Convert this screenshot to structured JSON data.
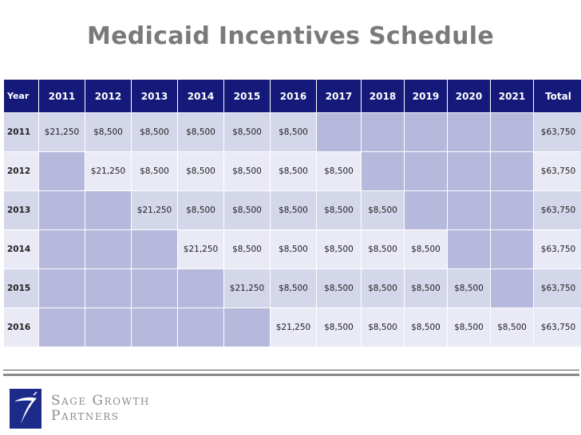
{
  "title": "Medicaid Incentives Schedule",
  "table": {
    "headers": [
      "Year",
      "2011",
      "2012",
      "2013",
      "2014",
      "2015",
      "2016",
      "2017",
      "2018",
      "2019",
      "2020",
      "2021",
      "Total"
    ],
    "rows": [
      {
        "year": "2011",
        "cells": [
          "$21,250",
          "$8,500",
          "$8,500",
          "$8,500",
          "$8,500",
          "$8,500",
          "",
          "",
          "",
          "",
          ""
        ],
        "total": "$63,750"
      },
      {
        "year": "2012",
        "cells": [
          "",
          "$21,250",
          "$8,500",
          "$8,500",
          "$8,500",
          "$8,500",
          "$8,500",
          "",
          "",
          "",
          ""
        ],
        "total": "$63,750"
      },
      {
        "year": "2013",
        "cells": [
          "",
          "",
          "$21,250",
          "$8,500",
          "$8,500",
          "$8,500",
          "$8,500",
          "$8,500",
          "",
          "",
          ""
        ],
        "total": "$63,750"
      },
      {
        "year": "2014",
        "cells": [
          "",
          "",
          "",
          "$21,250",
          "$8,500",
          "$8,500",
          "$8,500",
          "$8,500",
          "$8,500",
          "",
          ""
        ],
        "total": "$63,750"
      },
      {
        "year": "2015",
        "cells": [
          "",
          "",
          "",
          "",
          "$21,250",
          "$8,500",
          "$8,500",
          "$8,500",
          "$8,500",
          "$8,500",
          ""
        ],
        "total": "$63,750"
      },
      {
        "year": "2016",
        "cells": [
          "",
          "",
          "",
          "",
          "",
          "$21,250",
          "$8,500",
          "$8,500",
          "$8,500",
          "$8,500",
          "$8,500"
        ],
        "total": "$63,750"
      }
    ]
  },
  "logo": {
    "line1": "Sage Growth",
    "line2": "Partners",
    "icon": "sage-growth-logo-icon"
  },
  "colors": {
    "header_bg": "#151a7a",
    "row_light": "#d4d6ea",
    "row_lighter": "#e9eaf5",
    "empty_cell": "#b6b8dc",
    "title": "#7a7a7a"
  }
}
